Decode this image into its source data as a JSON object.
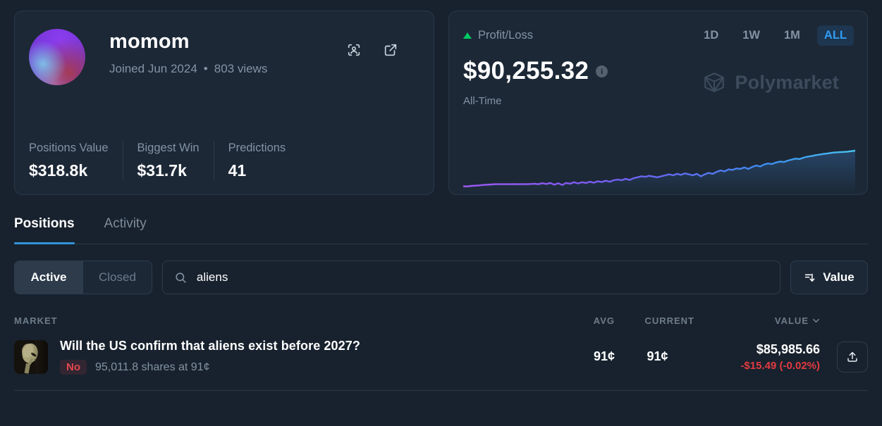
{
  "theme": {
    "accent_blue": "#2f9cf4",
    "tab_underline": "#3195d8",
    "green": "#00c964",
    "red": "#e23b40",
    "card_bg": "#1c2836",
    "page_bg": "#18222e",
    "muted_text": "#8393a3"
  },
  "profile_card": {
    "name": "momom",
    "joined": "Joined Jun 2024",
    "bullet": "•",
    "views": "803 views",
    "icons": [
      "scan-profile-icon",
      "external-link-icon"
    ],
    "stats": [
      {
        "label": "Positions Value",
        "value": "$318.8k"
      },
      {
        "label": "Biggest Win",
        "value": "$31.7k"
      },
      {
        "label": "Predictions",
        "value": "41"
      }
    ]
  },
  "pnl_card": {
    "title": "Profit/Loss",
    "amount": "$90,255.32",
    "info_glyph": "i",
    "period_label": "All-Time",
    "ranges": [
      {
        "label": "1D",
        "active": false
      },
      {
        "label": "1W",
        "active": false
      },
      {
        "label": "1M",
        "active": false
      },
      {
        "label": "ALL",
        "active": true
      }
    ],
    "watermark": "Polymarket"
  },
  "tabs": [
    {
      "label": "Positions",
      "active": true
    },
    {
      "label": "Activity",
      "active": false
    }
  ],
  "filters": {
    "segments": [
      {
        "label": "Active",
        "active": true
      },
      {
        "label": "Closed",
        "active": false
      }
    ],
    "search_value": "aliens",
    "search_placeholder": "Search",
    "sort_button": "Value"
  },
  "table": {
    "headers": {
      "market": "MARKET",
      "avg": "AVG",
      "current": "CURRENT",
      "value": "VALUE"
    },
    "rows": [
      {
        "title": "Will the US confirm that aliens exist before 2027?",
        "outcome": "No",
        "shares": "95,011.8 shares at 91¢",
        "avg": "91¢",
        "current": "91¢",
        "value": "$85,985.66",
        "change": "-$15.49 (-0.02%)"
      }
    ]
  },
  "chart_data": {
    "type": "line",
    "title": "Profit/Loss",
    "period": "All-Time",
    "end_value_usd": 90255.32,
    "xlabel": "",
    "ylabel": "",
    "axes_visible": false,
    "legend": "none",
    "line_gradient": [
      "#a259f7",
      "#7d5bf3",
      "#5f6df2",
      "#3d8ef0",
      "#49c4f2"
    ],
    "value_scale": "relative 0-100, unlabeled sparkline rising from ~$0 to $90,255.32",
    "values": [
      8,
      7.5,
      8.5,
      9,
      9.5,
      10.5,
      11,
      11.5,
      12,
      12,
      12,
      12,
      12,
      12.2,
      12,
      12.3,
      12,
      12.5,
      13,
      12,
      14,
      12.5,
      14.5,
      11,
      14,
      10.5,
      14.5,
      13,
      16,
      13.5,
      16,
      14.5,
      17,
      15,
      18,
      16.5,
      19,
      17,
      20,
      21.5,
      20,
      23,
      20.5,
      24,
      26,
      28,
      27,
      29,
      27.5,
      26,
      28,
      30,
      32,
      30,
      33,
      31,
      34,
      32,
      30,
      33,
      28,
      32,
      35,
      33,
      37,
      40,
      38,
      42,
      41,
      44,
      43,
      46,
      43,
      47,
      50,
      48,
      52,
      54,
      53,
      56,
      58,
      57,
      60,
      62,
      64,
      63,
      66,
      68,
      69,
      71,
      72,
      73.5,
      74.5,
      75.5,
      76.5,
      77,
      77.5,
      78,
      79,
      80
    ]
  }
}
